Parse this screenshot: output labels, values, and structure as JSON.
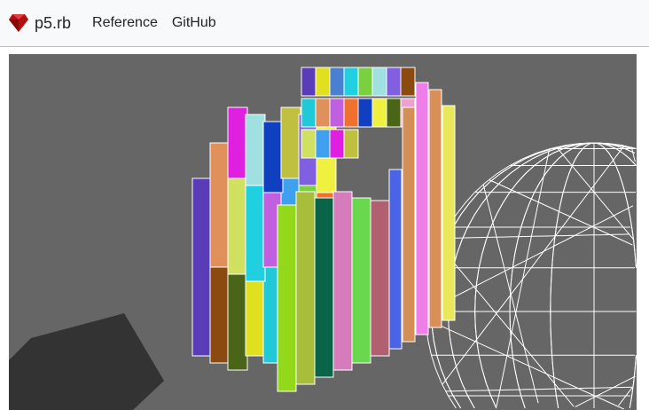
{
  "navbar": {
    "brand": "p5.rb",
    "links": [
      "Reference",
      "GitHub"
    ]
  },
  "icons": {
    "brand": "ruby-gem-icon"
  },
  "canvas": {
    "background": "#666666",
    "front_bars": [
      "#94d81c",
      "#a8be3a",
      "#0a6448",
      "#d67cbc",
      "#6ad84e",
      "#b06070",
      "#4a64e8",
      "#d48e58",
      "#f07ee8",
      "#d89058",
      "#e8e85a"
    ],
    "back_bars": [
      "#5a3cb8",
      "#8a4a10",
      "#4a6418",
      "#e0e020",
      "#20c8d8",
      "#f0a0d0",
      "#4a80d0",
      "#e0905a",
      "#d0e060",
      "#20d0e0",
      "#c060e0",
      "#40a0f0",
      "#7ad040",
      "#f07030",
      "#e020e0",
      "#a0e0e0",
      "#1040c0",
      "#c0c040",
      "#8060e0",
      "#f0f040"
    ]
  }
}
